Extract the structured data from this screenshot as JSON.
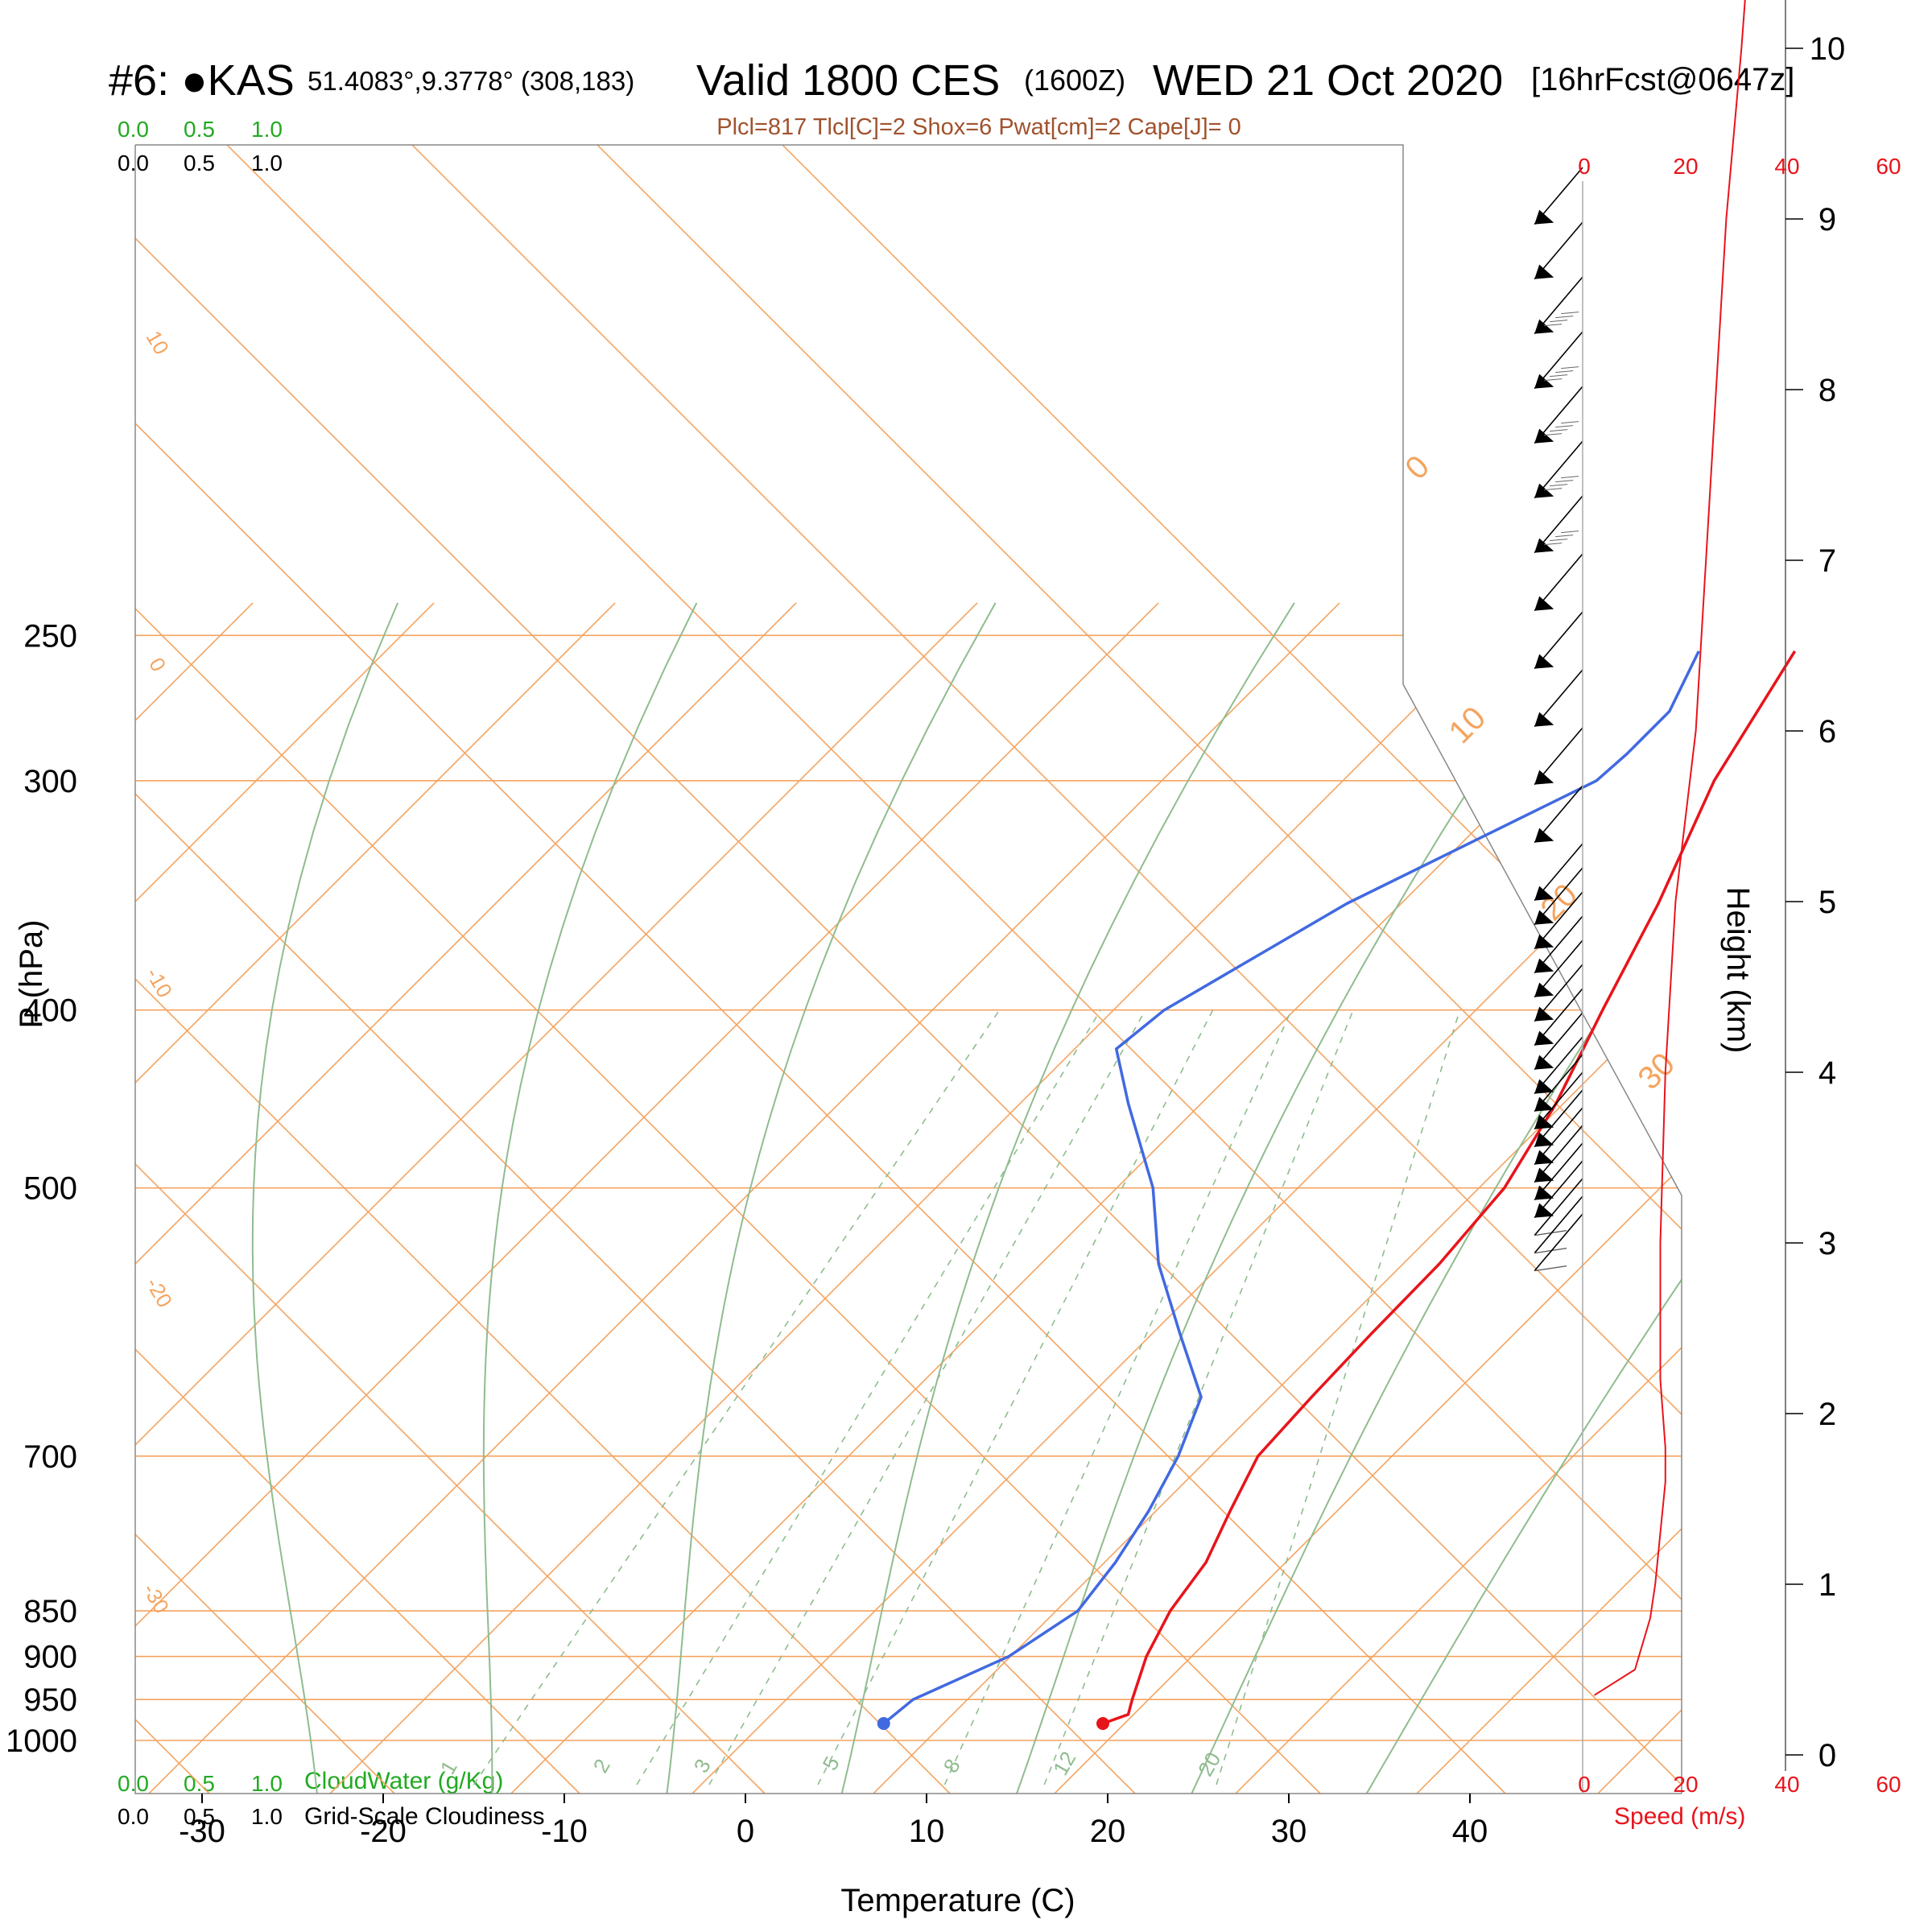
{
  "header": {
    "station": "#6: ●KAS",
    "coords": "51.4083°,9.3778° (308,183)",
    "valid_main": "Valid 1800 CES",
    "valid_z": "(1600Z)",
    "date": "WED 21 Oct 2020",
    "forecast": "[16hrFcst@0647z]",
    "indices": "Plcl=817 Tlcl[C]=2 Shox=6 Pwat[cm]=2 Cape[J]= 0"
  },
  "scales": {
    "cloudwater_ticks": [
      "0.0",
      "0.5",
      "1.0"
    ],
    "cloudiness_ticks": [
      "0.0",
      "0.5",
      "1.0"
    ],
    "cloudwater_label": "CloudWater (g/Kg)",
    "cloudiness_label": "Grid-Scale Cloudiness",
    "wind_speed_ticks": [
      "0",
      "20",
      "40",
      "60"
    ],
    "wind_speed_label": "Speed (m/s)"
  },
  "colors": {
    "temperature": "#e8141b",
    "dewpoint": "#4169e1",
    "isotherm": "#f4a460",
    "adiabat": "#8fbc8f",
    "cloudwater": "#22aa22",
    "wind_speed": "#e8141b"
  },
  "chart_data": {
    "type": "line",
    "subtype": "skew-T log-P sounding",
    "xlabel": "Temperature (C)",
    "ylabel": "P (hPa)",
    "right_ylabel": "Height (km)",
    "x_ticks": [
      -30,
      -20,
      -10,
      0,
      10,
      20,
      30,
      40
    ],
    "p_ticks": [
      250,
      300,
      400,
      500,
      700,
      850,
      900,
      950,
      1000
    ],
    "height_ticks_km": [
      0,
      1,
      2,
      3,
      4,
      5,
      6,
      7,
      8,
      9,
      10
    ],
    "isotherm_labels": [
      "0",
      "10",
      "20",
      "30"
    ],
    "isotherm_left_labels": [
      "10",
      "0",
      "-10",
      "-20",
      "-30"
    ],
    "mixing_ratio_labels": [
      "1",
      "2",
      "3",
      "5",
      "8",
      "12",
      "20"
    ],
    "series": [
      {
        "name": "Temperature",
        "points": [
          [
            979,
            18.8
          ],
          [
            968,
            19.7
          ],
          [
            950,
            19.1
          ],
          [
            900,
            17.5
          ],
          [
            850,
            16.3
          ],
          [
            800,
            15.6
          ],
          [
            750,
            14.1
          ],
          [
            700,
            12.6
          ],
          [
            650,
            12.3
          ],
          [
            600,
            12.1
          ],
          [
            550,
            12.0
          ],
          [
            500,
            11.4
          ],
          [
            450,
            9.6
          ],
          [
            400,
            7.0
          ],
          [
            350,
            4.2
          ],
          [
            300,
            0.5
          ],
          [
            255,
            -2.2
          ]
        ]
      },
      {
        "name": "Dewpoint",
        "points": [
          [
            979,
            6.7
          ],
          [
            950,
            7.0
          ],
          [
            900,
            9.9
          ],
          [
            850,
            11.2
          ],
          [
            800,
            10.6
          ],
          [
            750,
            9.6
          ],
          [
            700,
            8.2
          ],
          [
            650,
            6.2
          ],
          [
            600,
            1.5
          ],
          [
            550,
            -3.5
          ],
          [
            500,
            -8.0
          ],
          [
            450,
            -14.0
          ],
          [
            420,
            -17.7
          ],
          [
            400,
            -17.2
          ],
          [
            350,
            -13.0
          ],
          [
            300,
            -6.0
          ],
          [
            290,
            -5.8
          ],
          [
            275,
            -5.8
          ],
          [
            255,
            -7.5
          ]
        ]
      }
    ],
    "wind_speed_profile": {
      "name": "Speed (m/s)",
      "xlim": [
        0,
        60
      ],
      "points": [
        [
          0.35,
          2
        ],
        [
          0.5,
          10
        ],
        [
          0.8,
          13
        ],
        [
          1.0,
          14
        ],
        [
          1.3,
          15
        ],
        [
          1.6,
          16
        ],
        [
          1.8,
          16
        ],
        [
          2.2,
          15
        ],
        [
          3.0,
          15
        ],
        [
          4.0,
          16
        ],
        [
          5.0,
          18
        ],
        [
          6.0,
          22
        ],
        [
          7.0,
          24
        ],
        [
          8.0,
          26
        ],
        [
          9.0,
          28
        ],
        [
          10.0,
          31
        ],
        [
          10.4,
          32
        ]
      ]
    }
  }
}
